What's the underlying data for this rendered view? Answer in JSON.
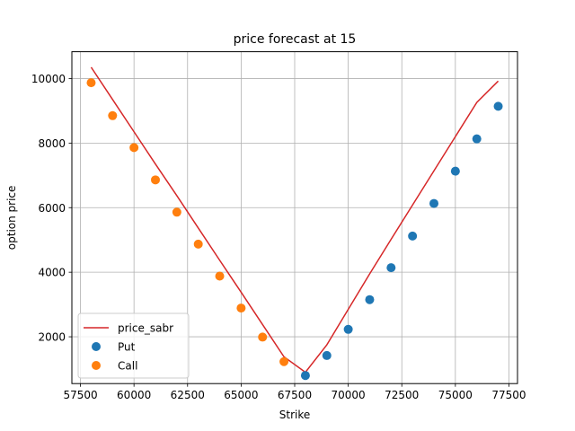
{
  "chart_data": {
    "type": "scatter",
    "title": "price forecast at 15",
    "xlabel": "Strike",
    "ylabel": "option price",
    "xlim": [
      57100,
      77900
    ],
    "ylim": [
      550,
      10830
    ],
    "xticks": [
      57500,
      60000,
      62500,
      65000,
      67500,
      70000,
      72500,
      75000,
      77500
    ],
    "yticks": [
      2000,
      4000,
      6000,
      8000,
      10000
    ],
    "grid": true,
    "legend_position": "lower-left",
    "series": [
      {
        "name": "price_sabr",
        "kind": "line",
        "color": "#d62728",
        "x": [
          58000,
          59000,
          60000,
          61000,
          62000,
          63000,
          64000,
          65000,
          66000,
          67000,
          68000,
          69000,
          70000,
          71000,
          72000,
          73000,
          74000,
          75000,
          76000,
          77000
        ],
        "y": [
          10350,
          9350,
          8350,
          7350,
          6370,
          5370,
          4370,
          3380,
          2380,
          1380,
          900,
          1750,
          2850,
          3950,
          5020,
          6080,
          7140,
          8200,
          9260,
          9920
        ]
      },
      {
        "name": "Put",
        "kind": "scatter",
        "color": "#1f77b4",
        "x": [
          68000,
          69000,
          70000,
          71000,
          72000,
          73000,
          74000,
          75000,
          76000,
          77000
        ],
        "y": [
          800,
          1420,
          2230,
          3150,
          4140,
          5120,
          6130,
          7130,
          8130,
          9140
        ]
      },
      {
        "name": "Call",
        "kind": "scatter",
        "color": "#ff7f0e",
        "x": [
          58000,
          59000,
          60000,
          61000,
          62000,
          63000,
          64000,
          65000,
          66000,
          67000
        ],
        "y": [
          9870,
          8850,
          7860,
          6860,
          5860,
          4870,
          3880,
          2890,
          1990,
          1230
        ]
      }
    ]
  }
}
